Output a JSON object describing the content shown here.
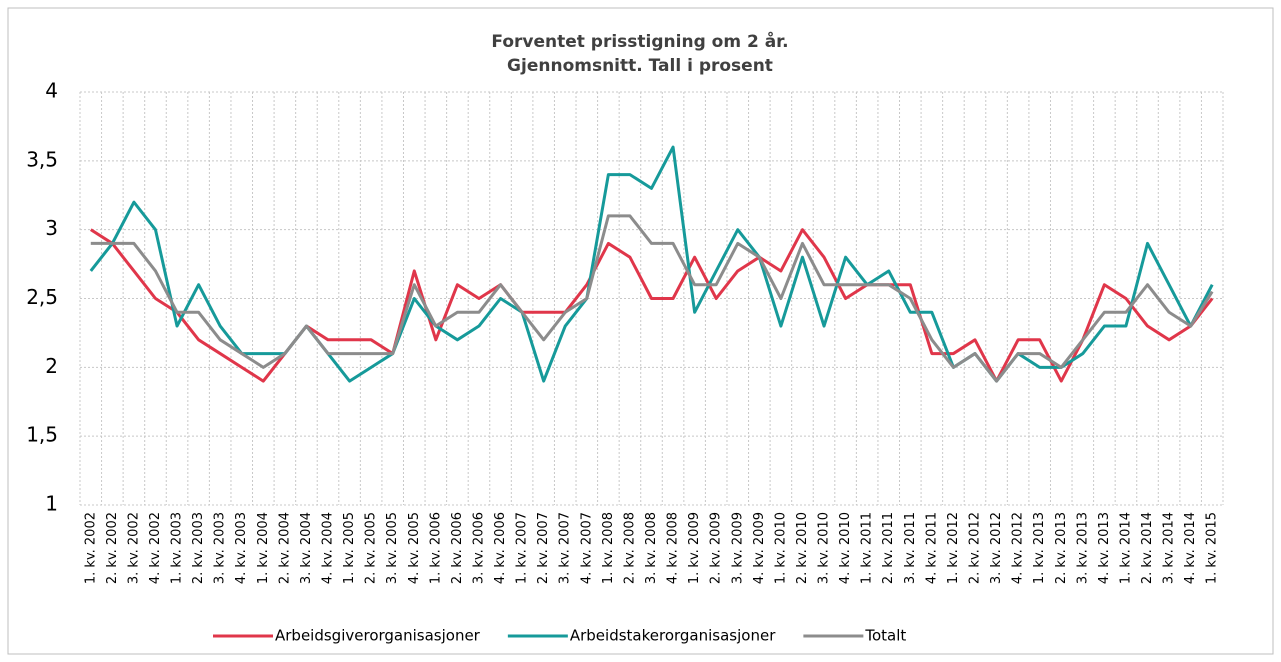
{
  "chart_data": {
    "type": "line",
    "title": "Forventet prisstigning om 2 år.",
    "subtitle": "Gjennomsnitt. Tall i prosent",
    "categories": [
      "1. kv. 2002",
      "2. kv. 2002",
      "3. kv. 2002",
      "4. kv. 2002",
      "1. kv. 2003",
      "2. kv. 2003",
      "3. kv. 2003",
      "4. kv. 2003",
      "1. kv. 2004",
      "2. kv. 2004",
      "3. kv. 2004",
      "4. kv. 2004",
      "1. kv. 2005",
      "2. kv. 2005",
      "3. kv. 2005",
      "4. kv. 2005",
      "1. kv. 2006",
      "2. kv. 2006",
      "3. kv. 2006",
      "4. kv. 2006",
      "1. kv. 2007",
      "2. kv. 2007",
      "3. kv. 2007",
      "4. kv. 2007",
      "1. kv. 2008",
      "2. kv. 2008",
      "3. kv. 2008",
      "4. kv. 2008",
      "1. kv. 2009",
      "2. kv. 2009",
      "3. kv. 2009",
      "4. kv. 2009",
      "1. kv. 2010",
      "2. kv. 2010",
      "3. kv. 2010",
      "4. kv. 2010",
      "1. kv. 2011",
      "2. kv. 2011",
      "3. kv. 2011",
      "4. kv. 2011",
      "1. kv. 2012",
      "2. kv. 2012",
      "3. kv. 2012",
      "4. kv. 2012",
      "1. kv. 2013",
      "2. kv. 2013",
      "3. kv. 2013",
      "4. kv. 2013",
      "1. kv. 2014",
      "2. kv. 2014",
      "3. kv. 2014",
      "4. kv. 2014",
      "1. kv. 2015"
    ],
    "series": [
      {
        "name": "Arbeidsgiverorganisasjoner",
        "color": "#e0364a",
        "values": [
          3.0,
          2.9,
          2.7,
          2.5,
          2.4,
          2.2,
          2.1,
          2.0,
          1.9,
          2.1,
          2.3,
          2.2,
          2.2,
          2.2,
          2.1,
          2.7,
          2.2,
          2.6,
          2.5,
          2.6,
          2.4,
          2.4,
          2.4,
          2.6,
          2.9,
          2.8,
          2.5,
          2.5,
          2.8,
          2.5,
          2.7,
          2.8,
          2.7,
          3.0,
          2.8,
          2.5,
          2.6,
          2.6,
          2.6,
          2.1,
          2.1,
          2.2,
          1.9,
          2.2,
          2.2,
          1.9,
          2.2,
          2.6,
          2.5,
          2.3,
          2.2,
          2.3,
          2.5
        ]
      },
      {
        "name": "Arbeidstakerorganisasjoner",
        "color": "#169a9a",
        "values": [
          2.7,
          2.9,
          3.2,
          3.0,
          2.3,
          2.6,
          2.3,
          2.1,
          2.1,
          2.1,
          2.3,
          2.1,
          1.9,
          2.0,
          2.1,
          2.5,
          2.3,
          2.2,
          2.3,
          2.5,
          2.4,
          1.9,
          2.3,
          2.5,
          3.4,
          3.4,
          3.3,
          3.6,
          2.4,
          2.7,
          3.0,
          2.8,
          2.3,
          2.8,
          2.3,
          2.8,
          2.6,
          2.7,
          2.4,
          2.4,
          2.0,
          2.1,
          1.9,
          2.1,
          2.0,
          2.0,
          2.1,
          2.3,
          2.3,
          2.9,
          2.6,
          2.3,
          2.6
        ]
      },
      {
        "name": "Totalt",
        "color": "#8c8c8c",
        "values": [
          2.9,
          2.9,
          2.9,
          2.7,
          2.4,
          2.4,
          2.2,
          2.1,
          2.0,
          2.1,
          2.3,
          2.1,
          2.1,
          2.1,
          2.1,
          2.6,
          2.3,
          2.4,
          2.4,
          2.6,
          2.4,
          2.2,
          2.4,
          2.5,
          3.1,
          3.1,
          2.9,
          2.9,
          2.6,
          2.6,
          2.9,
          2.8,
          2.5,
          2.9,
          2.6,
          2.6,
          2.6,
          2.6,
          2.5,
          2.2,
          2.0,
          2.1,
          1.9,
          2.1,
          2.1,
          2.0,
          2.2,
          2.4,
          2.4,
          2.6,
          2.4,
          2.3,
          2.55
        ]
      }
    ],
    "ylim": [
      1,
      4
    ],
    "yticks": [
      1,
      {
        "value": 1.5,
        "label": "1,5"
      },
      2,
      {
        "value": 2.5,
        "label": "2,5"
      },
      3,
      {
        "value": 3.5,
        "label": "3,5"
      },
      4
    ],
    "grid": true,
    "legend": "bottom"
  }
}
